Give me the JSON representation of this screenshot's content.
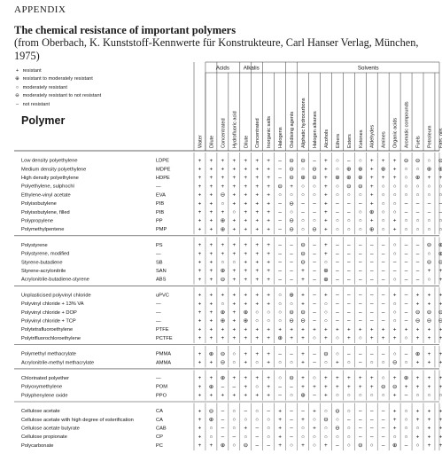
{
  "header": {
    "appendix": "APPENDIX",
    "title": "The chemical resistance of important polymers",
    "subtitle": "(from Oberbach, K. Kunststoff-Kennwerte für Konstrukteure, Carl Hanser Verlag, München, 1975)"
  },
  "legend": [
    {
      "symbol": "+",
      "text": "resistant"
    },
    {
      "symbol": "⊕",
      "text": "resistant to moderately resistant"
    },
    {
      "symbol": "○",
      "text": "moderately resistant"
    },
    {
      "symbol": "⊖",
      "text": "moderately resistant to not resistant"
    },
    {
      "symbol": "–",
      "text": "not resistant"
    }
  ],
  "polymer_heading": "Polymer",
  "group_headers": {
    "acids": "Acids",
    "alkalis": "Alkalis",
    "solvents": "Solvents"
  },
  "columns": [
    "Water",
    "Dilute",
    "Concentrated",
    "Hydrofluoric acid",
    "Dilute",
    "Concentrated",
    "Inorganic salts",
    "Halogens",
    "Oxidising agents",
    "Aliphatic hydrocarbons",
    "Halogen alkanes",
    "Alcohols",
    "Ethers",
    "Esters",
    "Ketones",
    "Aldehydes",
    "Amines",
    "Organic acids",
    "Aromatic compounds",
    "Fuels",
    "Petroleum",
    "Fats, oils"
  ],
  "groups": [
    {
      "rows": [
        {
          "name": "Low density polyethylene",
          "abbr": "LDPE",
          "values": [
            "+",
            "+",
            "+",
            "+",
            "+",
            "+",
            "+",
            "–",
            "⊖",
            "⊖",
            "–",
            "+",
            "○",
            "–",
            "○",
            "+",
            "+",
            "+",
            "⊖",
            "⊖",
            "○",
            "⊖"
          ]
        },
        {
          "name": "Medium density polyethylene",
          "abbr": "MDPE",
          "values": [
            "+",
            "+",
            "+",
            "+",
            "+",
            "+",
            "+",
            "–",
            "⊖",
            "○",
            "⊖",
            "+",
            "○",
            "⊕",
            "⊕",
            "+",
            "⊕",
            "+",
            "○",
            "○",
            "⊕",
            "⊕"
          ]
        },
        {
          "name": "High density polyethylene",
          "abbr": "HDPE",
          "values": [
            "+",
            "+",
            "+",
            "+",
            "+",
            "+",
            "+",
            "–",
            "⊖",
            "⊕",
            "⊖",
            "+",
            "⊕",
            "⊕",
            "⊕",
            "+",
            "+",
            "+",
            "○",
            "⊕",
            "+",
            "+"
          ]
        },
        {
          "name": "Polyethylene, sulphochl",
          "abbr": "—",
          "values": [
            "+",
            "+",
            "+",
            "+",
            "+",
            "+",
            "+",
            "⊖",
            "+",
            "○",
            "○",
            "+",
            "○",
            "⊖",
            "⊖",
            "+",
            "○",
            "○",
            "○",
            "○",
            "○",
            "○"
          ]
        },
        {
          "name": "Ethylene-vinyl acetate",
          "abbr": "EVA",
          "values": [
            "+",
            "+",
            "⊖",
            "+",
            "+",
            "+",
            "+",
            "○",
            "○",
            "○",
            "○",
            "+",
            "○",
            "○",
            "○",
            "+",
            "○",
            "○",
            "○",
            "○",
            "○",
            "○"
          ]
        },
        {
          "name": "Polyisobutylene",
          "abbr": "PIB",
          "values": [
            "+",
            "+",
            "○",
            "+",
            "+",
            "+",
            "+",
            "–",
            "⊖",
            "–",
            "–",
            "+",
            "–",
            "–",
            "–",
            "+",
            "○",
            "○",
            "–",
            "–",
            "–",
            "–"
          ]
        },
        {
          "name": "Polyisobutylene, filled",
          "abbr": "PIB",
          "values": [
            "+",
            "+",
            "+",
            "○",
            "+",
            "+",
            "+",
            "–",
            "○",
            "–",
            "–",
            "+",
            "–",
            "–",
            "○",
            "⊕",
            "○",
            "○",
            "–",
            "–",
            "–",
            "–"
          ]
        },
        {
          "name": "Polypropylene",
          "abbr": "PP",
          "values": [
            "+",
            "+",
            "⊕",
            "+",
            "+",
            "+",
            "+",
            "–",
            "⊖",
            "○",
            "○",
            "+",
            "○",
            "○",
            "○",
            "+",
            "○",
            "+",
            "○",
            "○",
            "○",
            "○"
          ]
        },
        {
          "name": "Polymethylpentene",
          "abbr": "PMP",
          "values": [
            "+",
            "+",
            "⊕",
            "+",
            "+",
            "+",
            "+",
            "–",
            "⊖",
            "○",
            "⊖",
            "+",
            "○",
            "○",
            "○",
            "⊕",
            "○",
            "+",
            "○",
            "○",
            "○",
            "○"
          ]
        }
      ]
    },
    {
      "rows": [
        {
          "name": "Polystyrene",
          "abbr": "PS",
          "values": [
            "+",
            "+",
            "+",
            "+",
            "+",
            "+",
            "+",
            "–",
            "–",
            "⊖",
            "–",
            "+",
            "–",
            "–",
            "–",
            "–",
            "–",
            "○",
            "–",
            "–",
            "⊖",
            "⊕"
          ]
        },
        {
          "name": "Polystyrene, modified",
          "abbr": "—",
          "values": [
            "+",
            "+",
            "+",
            "+",
            "+",
            "+",
            "+",
            "–",
            "–",
            "⊖",
            "–",
            "+",
            "–",
            "–",
            "–",
            "–",
            "–",
            "○",
            "–",
            "–",
            "○",
            "⊕"
          ]
        },
        {
          "name": "Styrene-butadiene",
          "abbr": "SB",
          "values": [
            "+",
            "+",
            "○",
            "○",
            "+",
            "+",
            "+",
            "–",
            "–",
            "⊖",
            "–",
            "○",
            "–",
            "–",
            "–",
            "–",
            "–",
            "–",
            "–",
            "–",
            "⊖",
            "⊖"
          ]
        },
        {
          "name": "Styrene-acrylonitrile",
          "abbr": "SAN",
          "values": [
            "+",
            "+",
            "⊕",
            "+",
            "+",
            "+",
            "+",
            "–",
            "–",
            "+",
            "–",
            "⊕",
            "–",
            "–",
            "–",
            "–",
            "–",
            "–",
            "–",
            "–",
            "+",
            "+"
          ]
        },
        {
          "name": "Acrylonitrile-butadiene-styrene",
          "abbr": "ABS",
          "values": [
            "+",
            "+",
            "⊖",
            "+",
            "+",
            "+",
            "+",
            "–",
            "–",
            "+",
            "–",
            "⊕",
            "–",
            "–",
            "–",
            "–",
            "–",
            "○",
            "–",
            "–",
            "○",
            "+"
          ]
        }
      ]
    },
    {
      "rows": [
        {
          "name": "Unplasticised polyvinyl chloride",
          "abbr": "uPVC",
          "values": [
            "+",
            "+",
            "+",
            "+",
            "+",
            "+",
            "+",
            "○",
            "⊕",
            "+",
            "–",
            "+",
            "–",
            "–",
            "–",
            "–",
            "–",
            "+",
            "–",
            "+",
            "+",
            "+"
          ]
        },
        {
          "name": "Polyvinyl chloride + 13% VA",
          "abbr": "—",
          "values": [
            "+",
            "+",
            "○",
            "+",
            "+",
            "+",
            "+",
            "○",
            "○",
            "+",
            "–",
            "○",
            "–",
            "–",
            "–",
            "–",
            "–",
            "○",
            "–",
            "+",
            "+",
            "+"
          ]
        },
        {
          "name": "Polyvinyl chloride + DOP",
          "abbr": "—",
          "values": [
            "+",
            "+",
            "⊕",
            "+",
            "⊕",
            "○",
            "○",
            "○",
            "⊖",
            "⊖",
            "–",
            "○",
            "–",
            "–",
            "–",
            "–",
            "–",
            "○",
            "–",
            "⊖",
            "⊖",
            "⊖"
          ]
        },
        {
          "name": "Polyvinyl chloride + TCP",
          "abbr": "—",
          "values": [
            "+",
            "+",
            "⊕",
            "+",
            "⊕",
            "○",
            "○",
            "○",
            "⊖",
            "⊖",
            "–",
            "○",
            "–",
            "–",
            "–",
            "–",
            "–",
            "○",
            "–",
            "⊖",
            "⊖",
            "⊖"
          ]
        },
        {
          "name": "Polytetrafluoroethylene",
          "abbr": "PTFE",
          "values": [
            "+",
            "+",
            "+",
            "+",
            "+",
            "+",
            "+",
            "+",
            "+",
            "+",
            "+",
            "+",
            "+",
            "+",
            "+",
            "+",
            "+",
            "+",
            "+",
            "+",
            "+",
            "+"
          ]
        },
        {
          "name": "Polytrifluorochloroethylene",
          "abbr": "PCTFE",
          "values": [
            "+",
            "+",
            "+",
            "+",
            "+",
            "+",
            "+",
            "⊕",
            "+",
            "+",
            "○",
            "+",
            "○",
            "+",
            "○",
            "+",
            "+",
            "+",
            "○",
            "+",
            "+",
            "+"
          ]
        }
      ]
    },
    {
      "rows": [
        {
          "name": "Polymethyl methacrylate",
          "abbr": "PMMA",
          "values": [
            "+",
            "⊕",
            "⊖",
            "○",
            "+",
            "+",
            "+",
            "–",
            "–",
            "+",
            "–",
            "⊖",
            "○",
            "–",
            "–",
            "–",
            "–",
            "○",
            "–",
            "⊕",
            "+",
            "+"
          ]
        },
        {
          "name": "Acrylonitrile-methyl methacrylate",
          "abbr": "AMMA",
          "values": [
            "+",
            "+",
            "⊖",
            "○",
            "+",
            "○",
            "+",
            "○",
            "○",
            "+",
            "–",
            "○",
            "+",
            "○",
            "–",
            "○",
            "○",
            "⊖",
            "○",
            "+",
            "+",
            "+"
          ]
        }
      ]
    },
    {
      "rows": [
        {
          "name": "Chlorinated polyether",
          "abbr": "—",
          "values": [
            "+",
            "+",
            "⊕",
            "+",
            "+",
            "+",
            "+",
            "○",
            "⊖",
            "+",
            "○",
            "+",
            "+",
            "+",
            "+",
            "+",
            "○",
            "+",
            "⊕",
            "+",
            "+",
            "+"
          ]
        },
        {
          "name": "Polyoxymethylene",
          "abbr": "POM",
          "values": [
            "+",
            "⊕",
            "–",
            "–",
            "+",
            "○",
            "+",
            "–",
            "–",
            "+",
            "+",
            "+",
            "+",
            "+",
            "+",
            "+",
            "⊖",
            "⊖",
            "+",
            "+",
            "+",
            "+"
          ]
        },
        {
          "name": "Polyphenylene oxide",
          "abbr": "PPO",
          "values": [
            "+",
            "+",
            "+",
            "+",
            "+",
            "+",
            "+",
            "–",
            "○",
            "⊕",
            "–",
            "+",
            "○",
            "○",
            "○",
            "○",
            "○",
            "+",
            "–",
            "○",
            "○",
            "○"
          ]
        }
      ]
    },
    {
      "rows": [
        {
          "name": "Cellulose acetate",
          "abbr": "CA",
          "values": [
            "+",
            "⊖",
            "–",
            "○",
            "–",
            "○",
            "–",
            "+",
            "–",
            "–",
            "+",
            "○",
            "⊖",
            "○",
            "–",
            "–",
            "–",
            "+",
            "○",
            "+",
            "+",
            "+"
          ]
        },
        {
          "name": "Cellulose acetate with high degree of esterification",
          "abbr": "CA",
          "values": [
            "+",
            "⊕",
            "–",
            "○",
            "○",
            "○",
            "○",
            "+",
            "–",
            "+",
            "○",
            "⊖",
            "○",
            "–",
            "–",
            "–",
            "–",
            "+",
            "○",
            "+",
            "+",
            "+"
          ]
        },
        {
          "name": "Cellulose acetate butyrate",
          "abbr": "CAB",
          "values": [
            "+",
            "○",
            "–",
            "○",
            "+",
            "–",
            "○",
            "+",
            "–",
            "○",
            "+",
            "○",
            "⊖",
            "○",
            "–",
            "–",
            "–",
            "+",
            "○",
            "○",
            "+",
            "+"
          ]
        },
        {
          "name": "Cellulose propionate",
          "abbr": "CP",
          "values": [
            "+",
            "○",
            "–",
            "–",
            "○",
            "–",
            "○",
            "+",
            "–",
            "○",
            "○",
            "○",
            "○",
            "○",
            "–",
            "–",
            "–",
            "○",
            "○",
            "+",
            "+",
            "+"
          ]
        },
        {
          "name": "Polycarbonate",
          "abbr": "PC",
          "values": [
            "+",
            "+",
            "⊕",
            "○",
            "⊖",
            "–",
            "–",
            "+",
            "○",
            "+",
            "○",
            "+",
            "–",
            "○",
            "⊖",
            "○",
            "–",
            "⊕",
            "–",
            "○",
            "+",
            "+"
          ]
        }
      ]
    }
  ]
}
